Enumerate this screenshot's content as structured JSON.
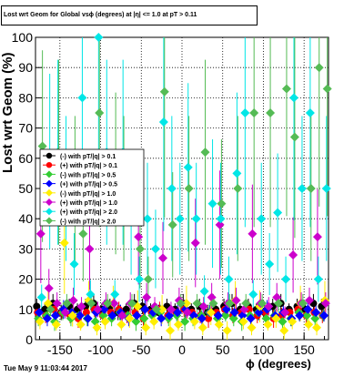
{
  "chart_data": {
    "type": "scatter",
    "title": "Lost wrt Geom for Global vsϕ (degrees) at |η| <= 1.0 at pT > 0.11",
    "xlabel": "ϕ (degrees)",
    "ylabel": "Lost wrt Geom (%)",
    "xlim": [
      -180,
      180
    ],
    "ylim": [
      0,
      100
    ],
    "xticks": [
      -150,
      -100,
      -50,
      0,
      50,
      100,
      150
    ],
    "yticks": [
      0,
      10,
      20,
      30,
      40,
      50,
      60,
      70,
      80,
      90,
      100
    ],
    "grid": true,
    "legend_position": "left-middle",
    "series": [
      {
        "name": "(-) with pT/|q| > 0.1",
        "color": "#000000",
        "marker": "circle",
        "baseline": 10,
        "x": [
          -175,
          -165,
          -155,
          -145,
          -135,
          -125,
          -115,
          -105,
          -95,
          -85,
          -75,
          -65,
          -55,
          -45,
          -35,
          -25,
          -15,
          -5,
          5,
          15,
          25,
          35,
          45,
          55,
          65,
          75,
          85,
          95,
          105,
          115,
          125,
          135,
          145,
          155,
          165,
          175
        ],
        "y": [
          11,
          10,
          12,
          9,
          11,
          10,
          11,
          12,
          10,
          11,
          9,
          10,
          12,
          11,
          10,
          9,
          11,
          10,
          12,
          10,
          11,
          9,
          10,
          11,
          12,
          10,
          11,
          10,
          9,
          11,
          12,
          10,
          11,
          10,
          12,
          11
        ]
      },
      {
        "name": "(+) with pT/|q| > 0.1",
        "color": "#ff0000",
        "marker": "circle",
        "baseline": 9,
        "x": [
          -175,
          -165,
          -155,
          -145,
          -135,
          -125,
          -115,
          -105,
          -95,
          -85,
          -75,
          -65,
          -55,
          -45,
          -35,
          -25,
          -15,
          -5,
          5,
          15,
          25,
          35,
          45,
          55,
          65,
          75,
          85,
          95,
          105,
          115,
          125,
          135,
          145,
          155,
          165,
          175
        ],
        "y": [
          9,
          8,
          10,
          9,
          8,
          7,
          9,
          10,
          8,
          9,
          10,
          8,
          9,
          7,
          9,
          10,
          8,
          9,
          10,
          9,
          8,
          7,
          9,
          10,
          8,
          9,
          10,
          8,
          9,
          7,
          8,
          9,
          10,
          8,
          9,
          8
        ]
      },
      {
        "name": "(-) with pT/|q| > 0.5",
        "color": "#33cc33",
        "marker": "diamond",
        "baseline": 8,
        "x": [
          -175,
          -165,
          -155,
          -145,
          -135,
          -125,
          -115,
          -105,
          -95,
          -85,
          -75,
          -65,
          -55,
          -45,
          -35,
          -25,
          -15,
          -5,
          5,
          15,
          25,
          35,
          45,
          55,
          65,
          75,
          85,
          95,
          105,
          115,
          125,
          135,
          145,
          155,
          165,
          175
        ],
        "y": [
          7,
          8,
          6,
          9,
          7,
          8,
          7,
          6,
          8,
          7,
          9,
          8,
          6,
          7,
          8,
          9,
          7,
          8,
          6,
          7,
          8,
          9,
          7,
          8,
          7,
          6,
          8,
          9,
          7,
          8,
          6,
          7,
          9,
          8,
          7,
          8
        ]
      },
      {
        "name": "(+) with pT/|q| > 0.5",
        "color": "#0000ff",
        "marker": "diamond",
        "baseline": 8,
        "x": [
          -175,
          -165,
          -155,
          -145,
          -135,
          -125,
          -115,
          -105,
          -95,
          -85,
          -75,
          -65,
          -55,
          -45,
          -35,
          -25,
          -15,
          -5,
          5,
          15,
          25,
          35,
          45,
          55,
          65,
          75,
          85,
          95,
          105,
          115,
          125,
          135,
          145,
          155,
          165,
          175
        ],
        "y": [
          9,
          7,
          8,
          10,
          9,
          8,
          7,
          9,
          10,
          8,
          9,
          7,
          8,
          10,
          9,
          7,
          8,
          9,
          10,
          8,
          7,
          9,
          8,
          10,
          9,
          8,
          7,
          9,
          10,
          8,
          9,
          7,
          8,
          10,
          9,
          8
        ]
      },
      {
        "name": "(-) with pT/|q| > 1.0",
        "color": "#ffee00",
        "marker": "diamond",
        "baseline": 5,
        "x": [
          -175,
          -165,
          -155,
          -145,
          -135,
          -125,
          -115,
          -105,
          -95,
          -85,
          -75,
          -65,
          -55,
          -45,
          -35,
          -25,
          -15,
          -5,
          5,
          15,
          25,
          35,
          45,
          55,
          65,
          75,
          85,
          95,
          105,
          115,
          125,
          135,
          145,
          155,
          165,
          175
        ],
        "y": [
          6,
          12,
          5,
          32,
          8,
          5,
          13,
          4,
          6,
          12,
          5,
          7,
          11,
          4,
          6,
          10,
          3,
          5,
          12,
          6,
          4,
          9,
          5,
          3,
          13,
          6,
          4,
          11,
          5,
          7,
          3,
          6,
          12,
          5,
          4,
          13
        ]
      },
      {
        "name": "(+) with pT/|q| > 1.0",
        "color": "#cc00cc",
        "marker": "diamond",
        "baseline": 9,
        "x": [
          -175,
          -165,
          -155,
          -145,
          -135,
          -125,
          -115,
          -105,
          -95,
          -85,
          -75,
          -65,
          -55,
          -45,
          -35,
          -25,
          -15,
          -5,
          5,
          15,
          25,
          35,
          45,
          55,
          65,
          75,
          85,
          95,
          105,
          115,
          125,
          135,
          145,
          155,
          165,
          175
        ],
        "y": [
          35,
          17,
          12,
          9,
          13,
          11,
          30,
          10,
          12,
          12,
          8,
          12,
          34,
          14,
          11,
          27,
          10,
          13,
          9,
          32,
          11,
          14,
          38,
          12,
          13,
          10,
          35,
          12,
          11,
          14,
          9,
          28,
          12,
          13,
          34,
          12
        ]
      },
      {
        "name": "(+) with pT/|q| > 2.0",
        "color": "#00e6e6",
        "marker": "diamond",
        "baseline": 10,
        "x": [
          -175,
          -165,
          -155,
          -145,
          -135,
          -125,
          -115,
          -105,
          -95,
          -85,
          -75,
          -65,
          -55,
          -45,
          -35,
          -25,
          -15,
          -5,
          5,
          15,
          25,
          35,
          45,
          55,
          65,
          75,
          85,
          95,
          105,
          115,
          125,
          135,
          145,
          155,
          165,
          175
        ],
        "y": [
          14,
          59,
          62,
          50,
          25,
          80,
          15,
          100,
          62,
          15,
          62,
          40,
          20,
          40,
          30,
          72,
          50,
          40,
          57,
          40,
          16,
          45,
          40,
          20,
          55,
          75,
          15,
          40,
          25,
          42,
          20,
          80,
          50,
          75,
          20,
          50
        ]
      },
      {
        "name": "(-) with pT/|q| > 2.0",
        "color": "#55bb55",
        "marker": "diamond",
        "baseline": 10,
        "x": [
          -175,
          -165,
          -155,
          -145,
          -135,
          -125,
          -115,
          -105,
          -95,
          -85,
          -75,
          -65,
          -55,
          -45,
          -35,
          -25,
          -15,
          -5,
          5,
          15,
          25,
          35,
          45,
          55,
          65,
          75,
          85,
          95,
          105,
          115,
          125,
          135,
          145,
          155,
          165,
          175
        ],
        "y": [
          64,
          10,
          62,
          12,
          50,
          35,
          12,
          75,
          12,
          55,
          50,
          12,
          30,
          20,
          10,
          82,
          38,
          12,
          50,
          12,
          62,
          12,
          45,
          12,
          50,
          12,
          75,
          12,
          75,
          12,
          83,
          67,
          12,
          50,
          90,
          83
        ]
      }
    ]
  },
  "footer": {
    "timestamp": "Tue May  9 11:03:44 2017"
  }
}
